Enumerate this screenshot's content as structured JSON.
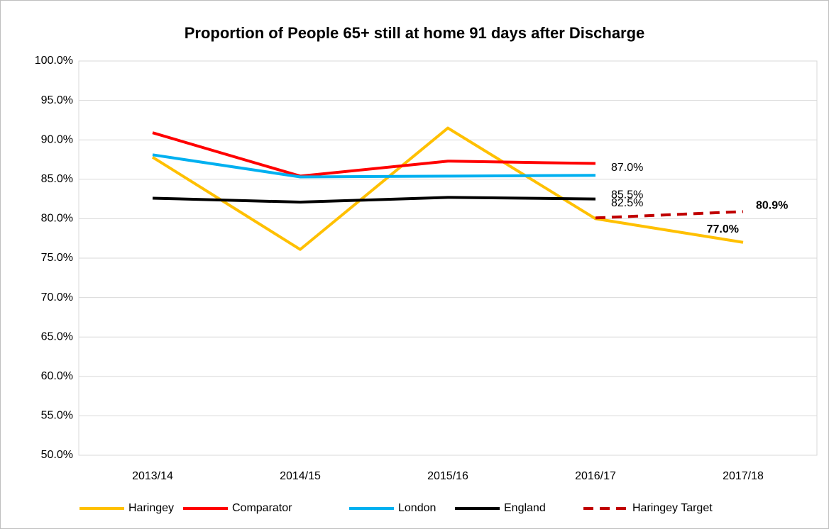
{
  "chart_data": {
    "type": "line",
    "title": "Proportion of People 65+ still at home 91 days after Discharge",
    "categories": [
      "2013/14",
      "2014/15",
      "2015/16",
      "2016/17",
      "2017/18"
    ],
    "series": [
      {
        "name": "Haringey",
        "color": "#ffc000",
        "values": [
          87.8,
          76.1,
          91.5,
          80.0,
          77.0
        ],
        "value_labels": [
          null,
          null,
          null,
          null,
          "77.0%"
        ]
      },
      {
        "name": "Comparator",
        "color": "#ff0000",
        "values": [
          90.9,
          85.4,
          87.3,
          87.0,
          null
        ],
        "value_labels": [
          null,
          null,
          null,
          "87.0%",
          null
        ]
      },
      {
        "name": "London",
        "color": "#00b0f0",
        "values": [
          88.1,
          85.3,
          85.4,
          85.5,
          null
        ],
        "value_labels": [
          null,
          null,
          null,
          "85.5%",
          null
        ]
      },
      {
        "name": "England",
        "color": "#000000",
        "values": [
          82.6,
          82.1,
          82.7,
          82.5,
          null
        ],
        "value_labels": [
          null,
          null,
          null,
          "82.5%",
          null
        ]
      },
      {
        "name": "Haringey Target",
        "color": "#c00000",
        "dashed": true,
        "values": [
          null,
          null,
          null,
          80.1,
          80.9
        ],
        "value_labels": [
          null,
          null,
          null,
          null,
          "80.9%"
        ]
      }
    ],
    "ylim": [
      50,
      100
    ],
    "yticks": [
      {
        "value": 50,
        "label": "50.0%"
      },
      {
        "value": 55,
        "label": "55.0%"
      },
      {
        "value": 60,
        "label": "60.0%"
      },
      {
        "value": 65,
        "label": "65.0%"
      },
      {
        "value": 70,
        "label": "70.0%"
      },
      {
        "value": 75,
        "label": "75.0%"
      },
      {
        "value": 80,
        "label": "80.0%"
      },
      {
        "value": 85,
        "label": "85.0%"
      },
      {
        "value": 90,
        "label": "90.0%"
      },
      {
        "value": 95,
        "label": "95.0%"
      },
      {
        "value": 100,
        "label": "100.0%"
      }
    ],
    "grid": true,
    "legend": "bottom"
  }
}
